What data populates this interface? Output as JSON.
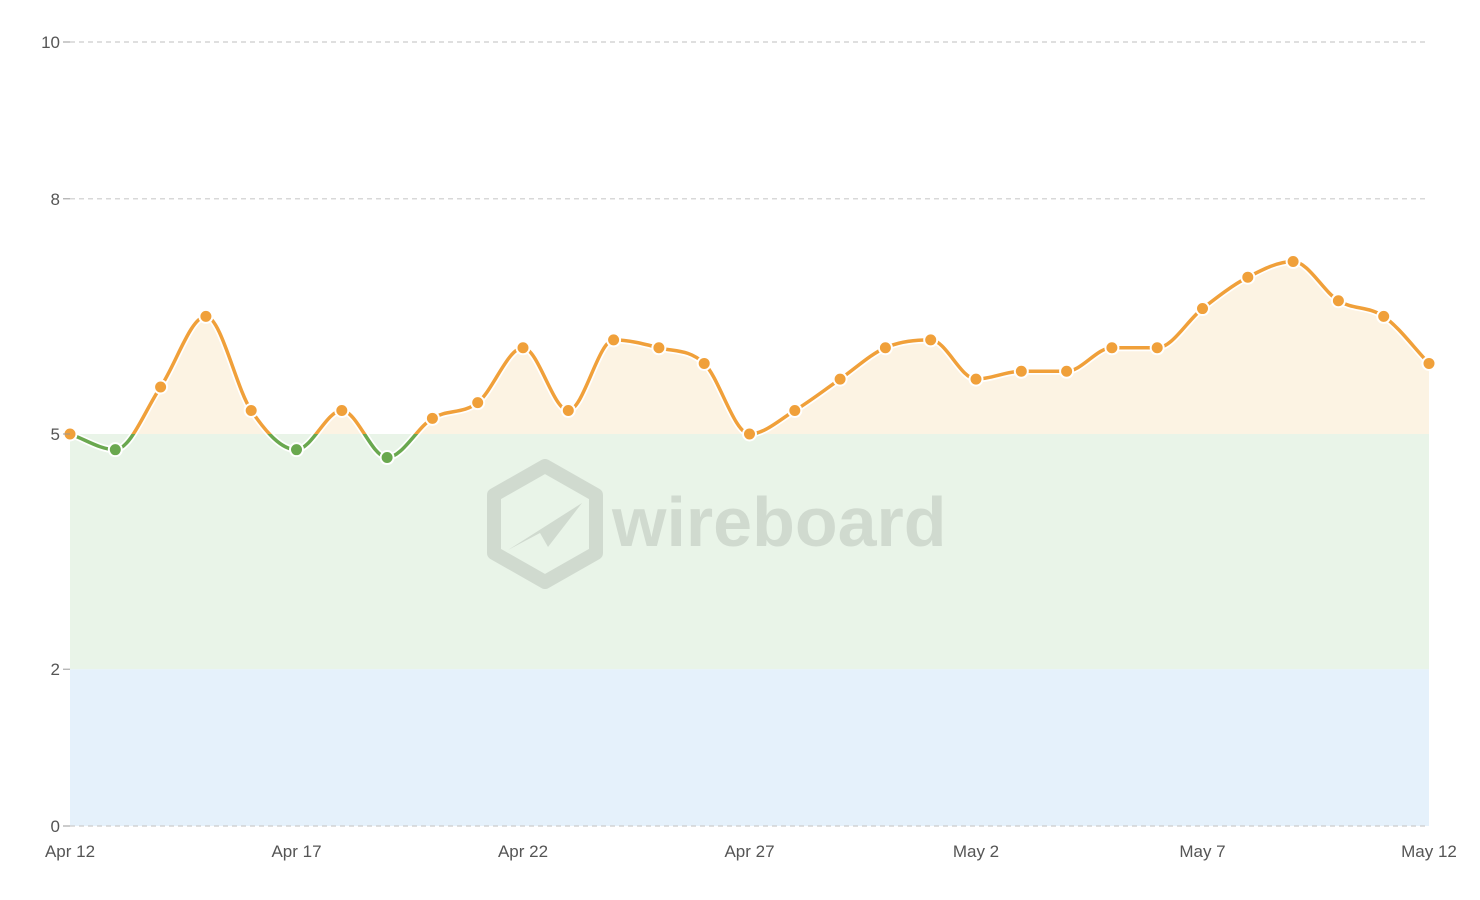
{
  "chart_data": {
    "type": "line",
    "x": [
      "Apr 12",
      "Apr 13",
      "Apr 14",
      "Apr 15",
      "Apr 16",
      "Apr 17",
      "Apr 18",
      "Apr 19",
      "Apr 20",
      "Apr 21",
      "Apr 22",
      "Apr 23",
      "Apr 24",
      "Apr 25",
      "Apr 26",
      "Apr 27",
      "Apr 28",
      "Apr 29",
      "Apr 30",
      "May 1",
      "May 2",
      "May 3",
      "May 4",
      "May 5",
      "May 6",
      "May 7",
      "May 8",
      "May 9",
      "May 10",
      "May 11",
      "May 12"
    ],
    "series": [
      {
        "values": [
          5.0,
          4.8,
          5.6,
          6.5,
          5.3,
          4.8,
          5.3,
          4.7,
          5.2,
          5.4,
          6.1,
          5.3,
          6.2,
          6.1,
          5.9,
          5.0,
          5.3,
          5.7,
          6.1,
          6.2,
          5.7,
          5.8,
          5.8,
          6.1,
          6.1,
          6.6,
          7.0,
          7.2,
          6.7,
          6.5,
          5.9
        ]
      }
    ],
    "x_ticks": [
      "Apr 12",
      "Apr 17",
      "Apr 22",
      "Apr 27",
      "May 2",
      "May 7",
      "May 12"
    ],
    "y_ticks": [
      0,
      2,
      5,
      8,
      10
    ],
    "ylim": [
      0,
      10
    ],
    "bands": [
      {
        "from": 0,
        "to": 2,
        "color": "#e5f1fb"
      },
      {
        "from": 2,
        "to": 5,
        "color": "#e9f4e8"
      },
      {
        "from": 5,
        "to": 10,
        "color": "#fcf3e3",
        "fill_to_line": true
      }
    ],
    "threshold": 5,
    "colors": {
      "above": "#f0a03a",
      "below": "#6aa84f",
      "grid": "#cccccc",
      "axis_text": "#555555"
    },
    "grid": true,
    "title": "",
    "xlabel": "",
    "ylabel": ""
  },
  "watermark": {
    "text": "wireboard"
  }
}
